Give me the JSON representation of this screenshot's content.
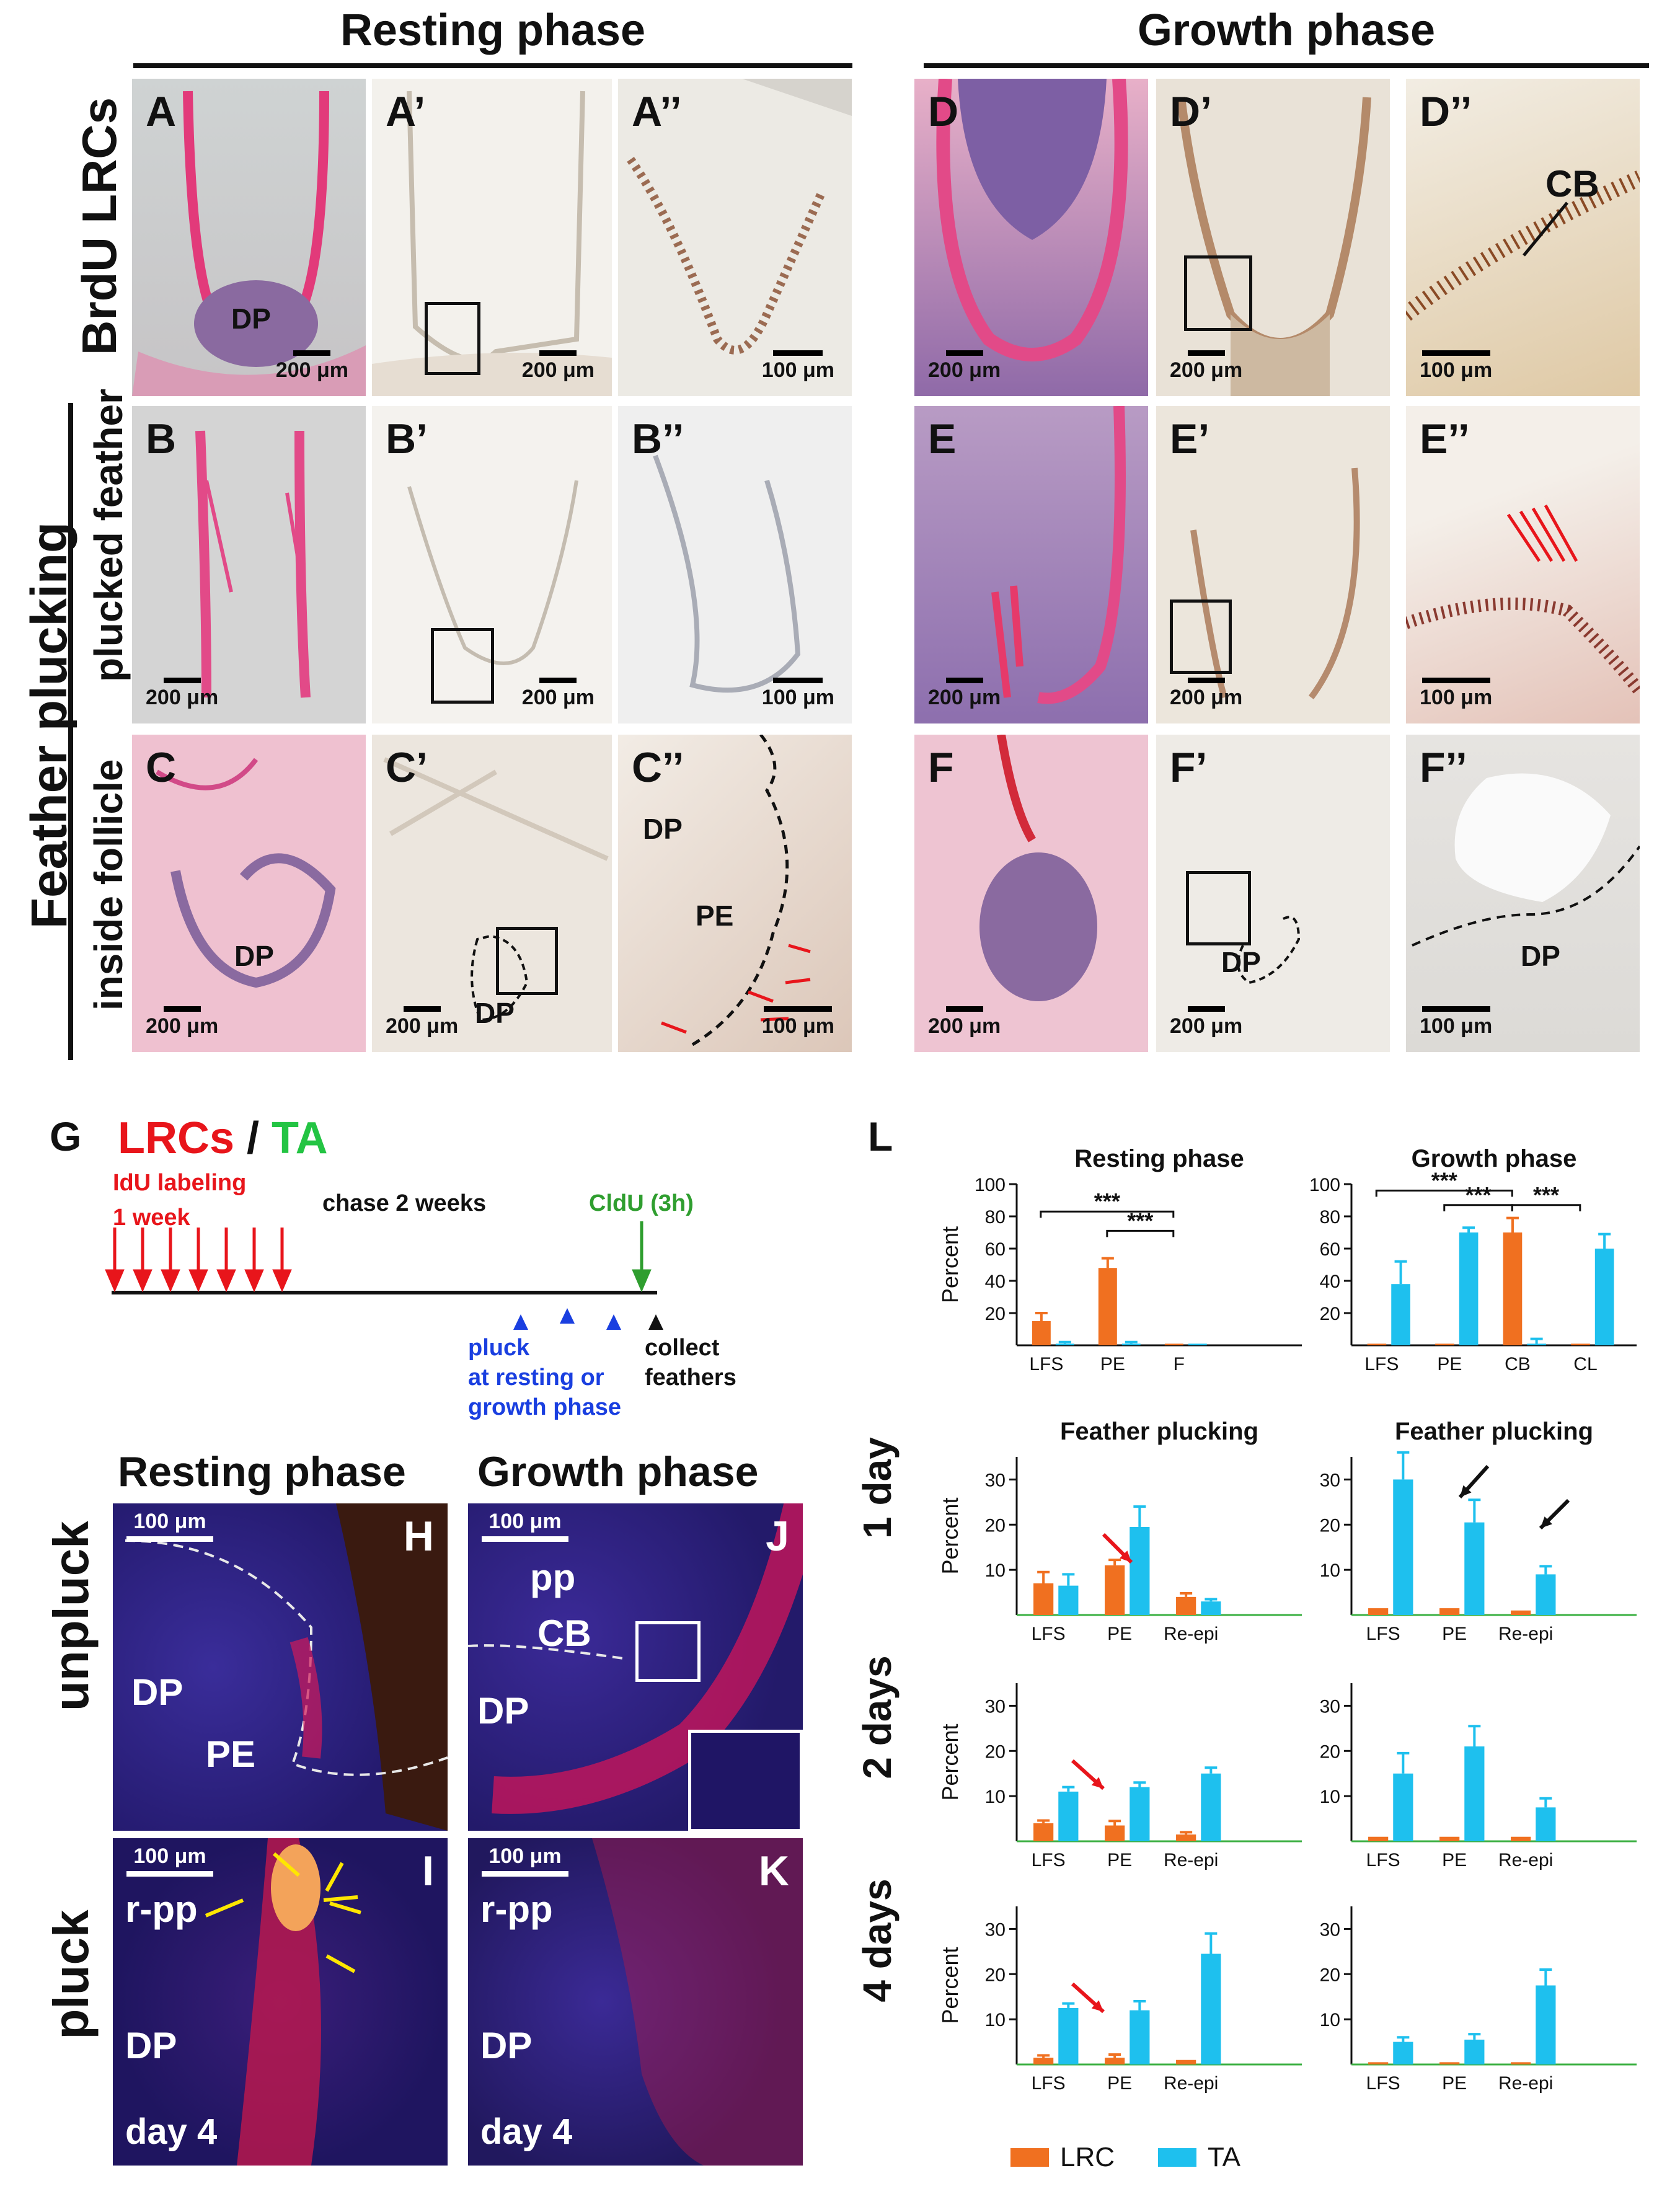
{
  "headers": {
    "resting": "Resting phase",
    "growth": "Growth phase"
  },
  "row_labels": {
    "brdu": "BrdU LRCs",
    "plucking": "Feather plucking",
    "plucked": "plucked feather",
    "inside": "inside follicle"
  },
  "panels": {
    "A": "A",
    "A1": "A’",
    "A2": "A’’",
    "B": "B",
    "B1": "B’",
    "B2": "B’’",
    "C": "C",
    "C1": "C’",
    "C2": "C’’",
    "D": "D",
    "D1": "D’",
    "D2": "D’’",
    "E": "E",
    "E1": "E’",
    "E2": "E’’",
    "F": "F",
    "F1": "F’",
    "F2": "F’’",
    "G": "G",
    "H": "H",
    "I": "I",
    "J": "J",
    "K": "K",
    "L": "L"
  },
  "scale": {
    "s200": "200 μm",
    "s100": "100 μm"
  },
  "tissue": {
    "DP": "DP",
    "PE": "PE",
    "CB": "CB",
    "pp": "pp",
    "rpp": "r-pp",
    "day4": "day 4"
  },
  "timeline": {
    "title_lrc": "LRCs",
    "title_sep": " / ",
    "title_ta": "TA",
    "idu_line1": "IdU labeling",
    "idu_line2": "1 week",
    "chase": "chase 2 weeks",
    "cldu": "CldU (3h)",
    "pluck_line1": "pluck",
    "pluck_line2": "at resting or",
    "pluck_line3": "growth phase",
    "collect_line1": "collect",
    "collect_line2": "feathers"
  },
  "fluor": {
    "resting": "Resting phase",
    "growth": "Growth phase",
    "unpluck": "unpluck",
    "pluck": "pluck"
  },
  "legend": {
    "lrc": "LRC",
    "ta": "TA"
  },
  "colors": {
    "lrc": "#f07020",
    "ta": "#1ec0ee",
    "lrc_text": "#e8151b",
    "ta_text": "#23c443",
    "pluck_blue": "#1a3fe0"
  },
  "chart_data": [
    {
      "type": "bar",
      "title": "Resting phase",
      "ylabel": "Percent",
      "ylim": [
        0,
        100
      ],
      "yticks": [
        20,
        40,
        60,
        80,
        100
      ],
      "categories": [
        "LFS",
        "PE",
        "F"
      ],
      "series": [
        {
          "name": "LRC",
          "values": [
            15,
            48,
            1
          ],
          "errors": [
            5,
            6,
            0
          ]
        },
        {
          "name": "TA",
          "values": [
            1,
            1,
            1
          ],
          "errors": [
            1,
            1,
            0
          ]
        }
      ],
      "significance": [
        "***",
        "***"
      ]
    },
    {
      "type": "bar",
      "title": "Growth phase",
      "ylabel": "",
      "ylim": [
        0,
        100
      ],
      "yticks": [
        20,
        40,
        60,
        80,
        100
      ],
      "categories": [
        "LFS",
        "PE",
        "CB",
        "CL"
      ],
      "series": [
        {
          "name": "LRC",
          "values": [
            1,
            1,
            70,
            1
          ],
          "errors": [
            0,
            0,
            9,
            0
          ]
        },
        {
          "name": "TA",
          "values": [
            38,
            70,
            1,
            60
          ],
          "errors": [
            14,
            3,
            3,
            9
          ]
        }
      ],
      "significance": [
        "***",
        "***",
        "***"
      ]
    },
    {
      "type": "bar",
      "title": "Feather plucking",
      "ylabel": "Percent",
      "row_label": "1 day",
      "ylim": [
        0,
        35
      ],
      "yticks": [
        10,
        20,
        30
      ],
      "categories": [
        "LFS",
        "PE",
        "Re-epi"
      ],
      "series": [
        {
          "name": "LRC",
          "values": [
            7,
            11,
            4
          ],
          "errors": [
            2.5,
            1.2,
            0.8
          ]
        },
        {
          "name": "TA",
          "values": [
            6.5,
            19.5,
            3
          ],
          "errors": [
            2.5,
            4.5,
            0.5
          ]
        }
      ]
    },
    {
      "type": "bar",
      "title": "Feather plucking",
      "ylabel": "",
      "ylim": [
        0,
        35
      ],
      "yticks": [
        10,
        20,
        30
      ],
      "categories": [
        "LFS",
        "PE",
        "Re-epi"
      ],
      "series": [
        {
          "name": "LRC",
          "values": [
            1.5,
            1.5,
            1
          ],
          "errors": [
            0,
            0,
            0
          ]
        },
        {
          "name": "TA",
          "values": [
            30,
            20.5,
            9
          ],
          "errors": [
            6,
            5,
            1.8
          ]
        }
      ]
    },
    {
      "type": "bar",
      "title": "",
      "ylabel": "Percent",
      "row_label": "2 days",
      "ylim": [
        0,
        35
      ],
      "yticks": [
        10,
        20,
        30
      ],
      "categories": [
        "LFS",
        "PE",
        "Re-epi"
      ],
      "series": [
        {
          "name": "LRC",
          "values": [
            4,
            3.5,
            1.5
          ],
          "errors": [
            0.6,
            1,
            0.5
          ]
        },
        {
          "name": "TA",
          "values": [
            11,
            12,
            15
          ],
          "errors": [
            1,
            1,
            1.3
          ]
        }
      ]
    },
    {
      "type": "bar",
      "title": "",
      "ylabel": "",
      "ylim": [
        0,
        35
      ],
      "yticks": [
        10,
        20,
        30
      ],
      "categories": [
        "LFS",
        "PE",
        "Re-epi"
      ],
      "series": [
        {
          "name": "LRC",
          "values": [
            1,
            1,
            1
          ],
          "errors": [
            0,
            0,
            0
          ]
        },
        {
          "name": "TA",
          "values": [
            15,
            21,
            7.5
          ],
          "errors": [
            4.5,
            4.5,
            2
          ]
        }
      ]
    },
    {
      "type": "bar",
      "title": "",
      "ylabel": "Percent",
      "row_label": "4 days",
      "ylim": [
        0,
        35
      ],
      "yticks": [
        10,
        20,
        30
      ],
      "categories": [
        "LFS",
        "PE",
        "Re-epi"
      ],
      "series": [
        {
          "name": "LRC",
          "values": [
            1.5,
            1.5,
            1
          ],
          "errors": [
            0.5,
            0.7,
            0
          ]
        },
        {
          "name": "TA",
          "values": [
            12.5,
            12,
            24.5
          ],
          "errors": [
            1,
            2,
            4.5
          ]
        }
      ]
    },
    {
      "type": "bar",
      "title": "",
      "ylabel": "",
      "ylim": [
        0,
        35
      ],
      "yticks": [
        10,
        20,
        30
      ],
      "categories": [
        "LFS",
        "PE",
        "Re-epi"
      ],
      "series": [
        {
          "name": "LRC",
          "values": [
            0.5,
            0.5,
            0.5
          ],
          "errors": [
            0,
            0,
            0
          ]
        },
        {
          "name": "TA",
          "values": [
            5,
            5.5,
            17.5
          ],
          "errors": [
            1,
            1.2,
            3.5
          ]
        }
      ]
    }
  ]
}
